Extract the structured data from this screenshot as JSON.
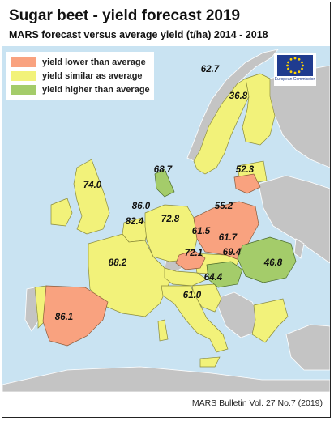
{
  "title": "Sugar beet - yield forecast 2019",
  "subtitle": "MARS forecast versus average yield (t/ha) 2014 - 2018",
  "legend": [
    {
      "label": "yield lower than average",
      "color": "#f9a27f"
    },
    {
      "label": "yield similar as average",
      "color": "#f2f27a"
    },
    {
      "label": "yield higher than average",
      "color": "#a4cc6a"
    }
  ],
  "logo": {
    "icon": "european-commission-flag-icon",
    "text": "European Commission"
  },
  "colors": {
    "sea": "#c9e3f2",
    "non_eu": "#c4c4c4",
    "lower": "#f9a27f",
    "similar": "#f2f27a",
    "higher": "#a4cc6a"
  },
  "regions": [
    {
      "country": "Sweden",
      "value": "62.7",
      "category": "similar"
    },
    {
      "country": "Finland",
      "value": "36.8",
      "category": "similar"
    },
    {
      "country": "Denmark",
      "value": "68.7",
      "category": "higher"
    },
    {
      "country": "Lithuania",
      "value": "52.3",
      "category": "lower"
    },
    {
      "country": "United Kingdom",
      "value": "74.0",
      "category": "similar"
    },
    {
      "country": "Netherlands",
      "value": "86.0",
      "category": "similar"
    },
    {
      "country": "Belgium",
      "value": "82.4",
      "category": "similar"
    },
    {
      "country": "Germany",
      "value": "72.8",
      "category": "similar"
    },
    {
      "country": "Poland",
      "value": "55.2",
      "category": "lower"
    },
    {
      "country": "Czechia",
      "value": "61.5",
      "category": "lower"
    },
    {
      "country": "Slovakia",
      "value": "61.7",
      "category": "similar"
    },
    {
      "country": "Austria",
      "value": "72.1",
      "category": "similar"
    },
    {
      "country": "Hungary",
      "value": "69.4",
      "category": "higher"
    },
    {
      "country": "Romania",
      "value": "46.8",
      "category": "higher"
    },
    {
      "country": "France",
      "value": "88.2",
      "category": "similar"
    },
    {
      "country": "Croatia",
      "value": "64.4",
      "category": "similar"
    },
    {
      "country": "Italy",
      "value": "61.0",
      "category": "similar"
    },
    {
      "country": "Spain",
      "value": "86.1",
      "category": "lower"
    }
  ],
  "footer": "MARS Bulletin Vol. 27 No.7 (2019)"
}
